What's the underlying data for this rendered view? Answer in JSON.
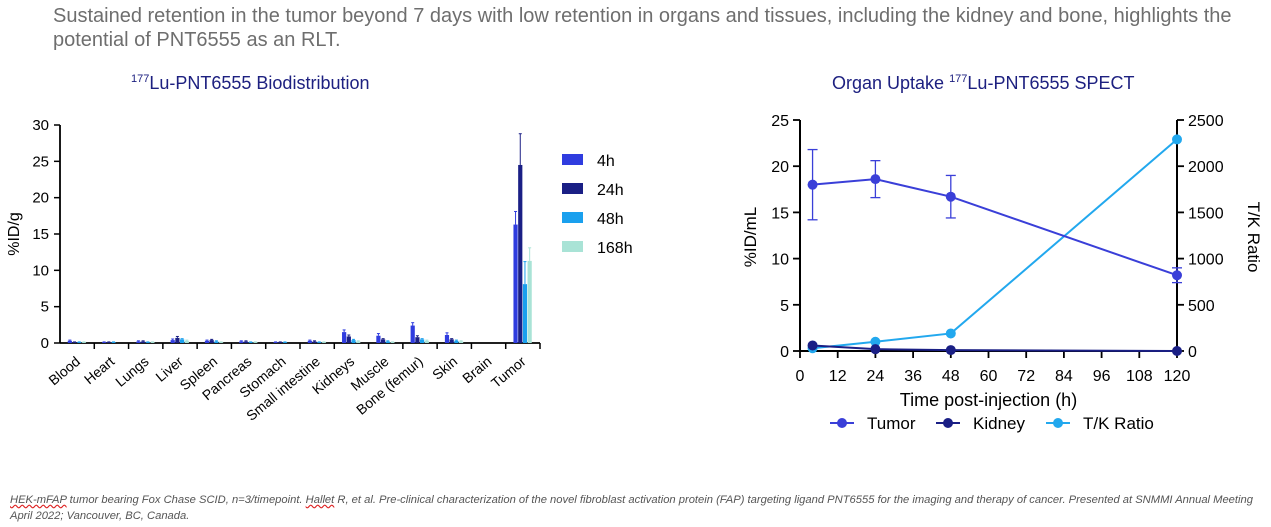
{
  "headline": "Sustained retention in the tumor beyond 7 days with low retention in organs and tissues, including the kidney and bone, highlights the potential of PNT6555 as an RLT.",
  "colors": {
    "c4h": "#2f3cdf",
    "c24h": "#1a1f85",
    "c48h": "#1aa0ee",
    "c168h": "#a9e3d6",
    "tumor": "#3a3fd8",
    "kidney": "#1a1f85",
    "tk": "#22a8ee",
    "title": "#1d2080"
  },
  "chart_data": [
    {
      "type": "bar",
      "title_sup": "177",
      "title_main": "Lu-PNT6555 Biodistribution",
      "ylabel": "%ID/g",
      "ylim": [
        0,
        30
      ],
      "yticks": [
        0,
        5,
        10,
        15,
        20,
        25,
        30
      ],
      "categories": [
        "Blood",
        "Heart",
        "Lungs",
        "Liver",
        "Spleen",
        "Pancreas",
        "Stomach",
        "Small intestine",
        "Kidneys",
        "Muscle",
        "Bone (femur)",
        "Skin",
        "Brain",
        "Tumor"
      ],
      "series": [
        {
          "name": "4h",
          "values": [
            0.3,
            0.1,
            0.2,
            0.4,
            0.3,
            0.2,
            0.1,
            0.3,
            1.5,
            1.0,
            2.4,
            1.1,
            0.0,
            16.3
          ],
          "errors": [
            0.1,
            0.05,
            0.1,
            0.15,
            0.1,
            0.1,
            0.05,
            0.1,
            0.3,
            0.3,
            0.4,
            0.3,
            0.0,
            1.8
          ]
        },
        {
          "name": "24h",
          "values": [
            0.1,
            0.1,
            0.2,
            0.7,
            0.4,
            0.2,
            0.1,
            0.2,
            0.9,
            0.5,
            0.8,
            0.5,
            0.0,
            24.5
          ],
          "errors": [
            0.05,
            0.05,
            0.1,
            0.2,
            0.1,
            0.1,
            0.05,
            0.1,
            0.2,
            0.1,
            0.2,
            0.1,
            0.0,
            4.3
          ]
        },
        {
          "name": "48h",
          "values": [
            0.1,
            0.1,
            0.1,
            0.5,
            0.2,
            0.1,
            0.1,
            0.1,
            0.4,
            0.2,
            0.5,
            0.3,
            0.0,
            8.1
          ],
          "errors": [
            0.05,
            0.05,
            0.05,
            0.1,
            0.1,
            0.05,
            0.05,
            0.05,
            0.1,
            0.1,
            0.1,
            0.1,
            0.0,
            3.1
          ]
        },
        {
          "name": "168h",
          "values": [
            0.1,
            0.0,
            0.1,
            0.3,
            0.1,
            0.1,
            0.0,
            0.1,
            0.2,
            0.1,
            0.3,
            0.2,
            0.0,
            11.3
          ],
          "errors": [
            0.05,
            0.0,
            0.05,
            0.1,
            0.05,
            0.05,
            0.0,
            0.05,
            0.1,
            0.05,
            0.1,
            0.1,
            0.0,
            1.8
          ]
        }
      ],
      "legend_position": "right"
    },
    {
      "type": "line",
      "title_main_a": "Organ Uptake ",
      "title_sup": "177",
      "title_main_b": "Lu-PNT6555 SPECT",
      "xlabel": "Time post-injection (h)",
      "ylabel": "%ID/mL",
      "y2label": "T/K Ratio",
      "xlim": [
        0,
        120
      ],
      "xticks": [
        0,
        12,
        24,
        36,
        48,
        60,
        72,
        84,
        96,
        108,
        120
      ],
      "ylim": [
        0,
        25
      ],
      "yticks": [
        0,
        5,
        10,
        15,
        20,
        25
      ],
      "y2lim": [
        0,
        2500
      ],
      "y2ticks": [
        0,
        500,
        1000,
        1500,
        2000,
        2500
      ],
      "series": [
        {
          "name": "Tumor",
          "axis": "left",
          "x": [
            4,
            24,
            48,
            120
          ],
          "y": [
            18.0,
            18.6,
            16.7,
            8.2
          ],
          "errors": [
            3.8,
            2.0,
            2.3,
            0.8
          ]
        },
        {
          "name": "Kidney",
          "axis": "left",
          "x": [
            4,
            24,
            48,
            120
          ],
          "y": [
            0.6,
            0.2,
            0.1,
            0.0
          ]
        },
        {
          "name": "T/K Ratio",
          "axis": "right",
          "x": [
            4,
            24,
            48,
            120
          ],
          "y": [
            30,
            100,
            190,
            2290
          ]
        }
      ],
      "legend_position": "bottom"
    }
  ],
  "footnote": {
    "part_underlined": "HEK-mFAP",
    "part_rest": " tumor bearing Fox Chase SCID, n=3/timepoint. ",
    "part_underlined2": "Hallet",
    "part_rest2": " R, et al. Pre-clinical characterization of the novel fibroblast activation protein (FAP) targeting ligand PNT6555 for the imaging and therapy of cancer. Presented at SNMMI Annual Meeting April 2022; Vancouver, BC, Canada."
  }
}
